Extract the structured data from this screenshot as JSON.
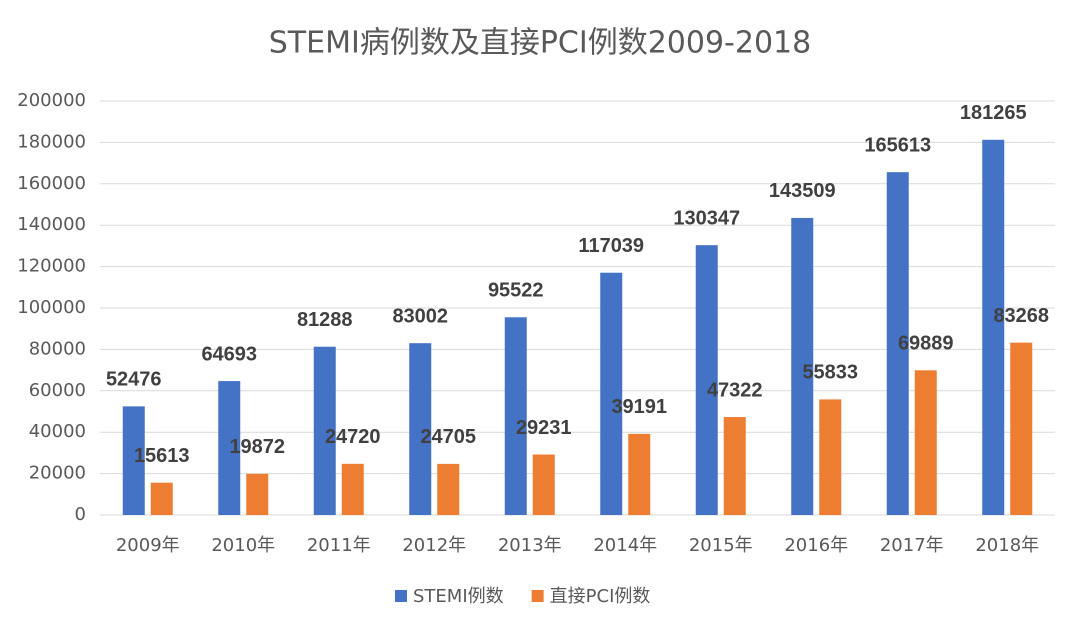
{
  "chart_data": {
    "type": "bar",
    "title": "STEMI病例数及直接PCI例数2009-2018",
    "categories": [
      "2009年",
      "2010年",
      "2011年",
      "2012年",
      "2013年",
      "2014年",
      "2015年",
      "2016年",
      "2017年",
      "2018年"
    ],
    "series": [
      {
        "name": "STEMI例数",
        "color": "#4472c4",
        "values": [
          52476,
          64693,
          81288,
          83002,
          95522,
          117039,
          130347,
          143509,
          165613,
          181265
        ]
      },
      {
        "name": "直接PCI例数",
        "color": "#ed7d31",
        "values": [
          15613,
          19872,
          24720,
          24705,
          29231,
          39191,
          47322,
          55833,
          69889,
          83268
        ]
      }
    ],
    "ylim": [
      0,
      200000
    ],
    "yticks": [
      0,
      20000,
      40000,
      60000,
      80000,
      100000,
      120000,
      140000,
      160000,
      180000,
      200000
    ],
    "grid": true,
    "legend": "bottom",
    "data_labels": true
  }
}
